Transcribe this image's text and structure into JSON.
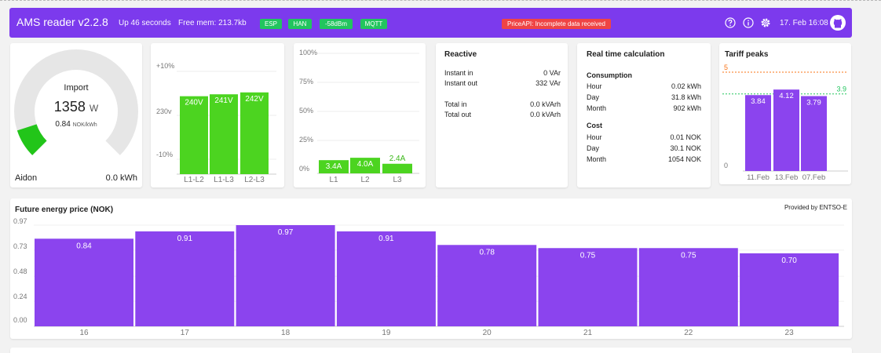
{
  "header": {
    "title": "AMS reader v2.2.8",
    "uptime": "Up 46 seconds",
    "free_mem": "Free mem: 213.7kb",
    "badges": [
      "ESP",
      "HAN",
      "-58dBm",
      "MQTT"
    ],
    "error_badge": "PriceAPI: Incomplete data received",
    "datetime": "17. Feb 16:08",
    "colors": {
      "bar": "#7c3aed",
      "ok": "#22c55e",
      "error": "#ef4444"
    }
  },
  "import_gauge": {
    "label": "Import",
    "value": "1358",
    "unit": "W",
    "price": "0.84",
    "price_unit": "NOK/kWh",
    "meter": "Aidon",
    "energy": "0.0 kWh",
    "fill_fraction": 0.1
  },
  "voltage": {
    "axis_labels": [
      "+10%",
      "230v",
      "-10%"
    ],
    "bars": [
      {
        "label": "L1-L2",
        "value": "240V",
        "volts": 240
      },
      {
        "label": "L1-L3",
        "value": "241V",
        "volts": 241
      },
      {
        "label": "L2-L3",
        "value": "242V",
        "volts": 242
      }
    ]
  },
  "current": {
    "axis_labels": [
      "100%",
      "75%",
      "50%",
      "25%",
      "0%"
    ],
    "bars": [
      {
        "label": "L1",
        "value": "3.4A",
        "amps": 3.4,
        "percent": 11
      },
      {
        "label": "L2",
        "value": "4.0A",
        "amps": 4.0,
        "percent": 13
      },
      {
        "label": "L3",
        "value": "2.4A",
        "amps": 2.4,
        "percent": 8
      }
    ]
  },
  "reactive": {
    "title": "Reactive",
    "rows": [
      {
        "label": "Instant in",
        "value": "0 VAr"
      },
      {
        "label": "Instant out",
        "value": "332 VAr"
      },
      {
        "label": "Total in",
        "value": "0.0 kVArh"
      },
      {
        "label": "Total out",
        "value": "0.0 kVArh"
      }
    ]
  },
  "realtime": {
    "title": "Real time calculation",
    "consumption_title": "Consumption",
    "consumption": [
      {
        "label": "Hour",
        "value": "0.02 kWh"
      },
      {
        "label": "Day",
        "value": "31.8 kWh"
      },
      {
        "label": "Month",
        "value": "902 kWh"
      }
    ],
    "cost_title": "Cost",
    "cost": [
      {
        "label": "Hour",
        "value": "0.01 NOK"
      },
      {
        "label": "Day",
        "value": "30.1 NOK"
      },
      {
        "label": "Month",
        "value": "1054 NOK"
      }
    ]
  },
  "tariff": {
    "title": "Tariff peaks",
    "threshold": "5",
    "average": "3.9",
    "zero": "0",
    "chart_data": {
      "type": "bar",
      "title": "Tariff peaks",
      "categories": [
        "11.Feb",
        "13.Feb",
        "07.Feb"
      ],
      "values": [
        3.84,
        4.12,
        3.79
      ],
      "value_labels": [
        "3.84",
        "4.12",
        "3.79"
      ],
      "ylim": [
        0,
        5
      ],
      "threshold": 5,
      "average": 3.9
    }
  },
  "prices": {
    "title": "Future energy price (NOK)",
    "provider": "Provided by ENTSO-E",
    "y_ticks": [
      "0.97",
      "0.73",
      "0.48",
      "0.24",
      "0.00"
    ],
    "chart_data": {
      "type": "bar",
      "title": "Future energy price (NOK)",
      "categories": [
        "16",
        "17",
        "18",
        "19",
        "20",
        "21",
        "22",
        "23"
      ],
      "values": [
        0.84,
        0.91,
        0.97,
        0.91,
        0.78,
        0.75,
        0.75,
        0.7
      ],
      "value_labels": [
        "0.84",
        "0.91",
        "0.97",
        "0.91",
        "0.78",
        "0.75",
        "0.75",
        "0.70"
      ],
      "ylim": [
        0,
        0.97
      ],
      "xlabel": "",
      "ylabel": ""
    }
  }
}
